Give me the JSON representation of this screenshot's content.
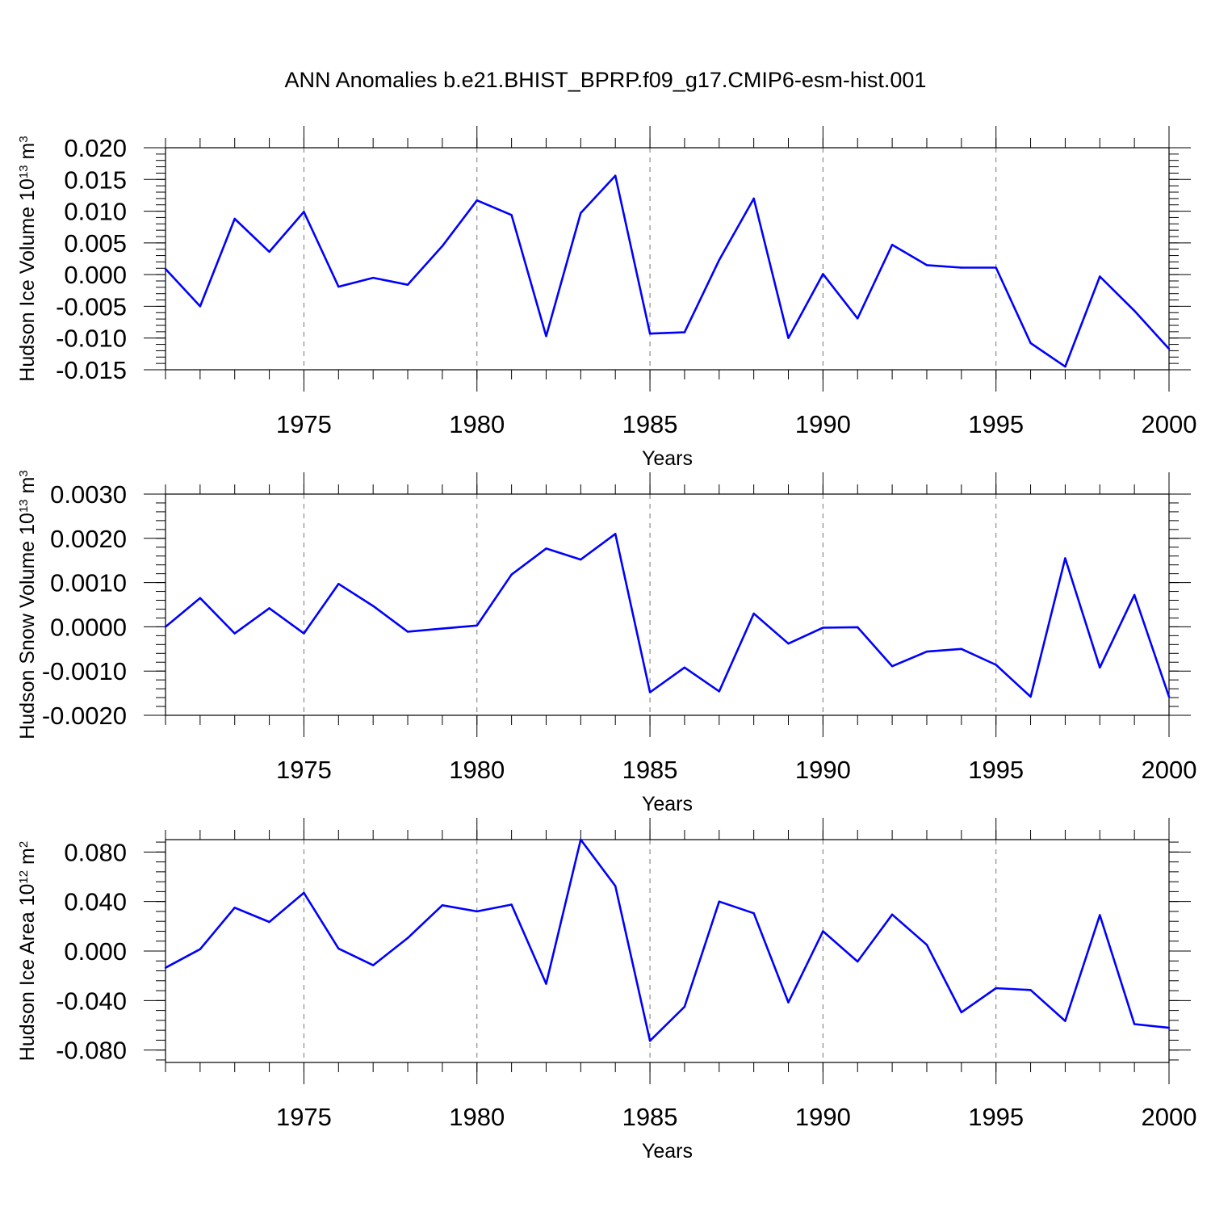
{
  "title": "ANN Anomalies b.e21.BHIST_BPRP.f09_g17.CMIP6-esm-hist.001",
  "series_color": "#0000ff",
  "chart_data": [
    {
      "type": "line",
      "ylabel_text": "Hudson Ice Volume 10",
      "ylabel_exp": "13",
      "ylabel_unit": " m",
      "ylabel_unit_exp": "3",
      "xlabel": "Years",
      "xlim": [
        1971,
        2000
      ],
      "ylim": [
        -0.015,
        0.02
      ],
      "yticks": [
        -0.015,
        -0.01,
        -0.005,
        0.0,
        0.005,
        0.01,
        0.015,
        0.02
      ],
      "yticklabels": [
        "-0.015",
        "-0.010",
        "-0.005",
        "0.000",
        "0.005",
        "0.010",
        "0.015",
        "0.020"
      ],
      "xticks": [
        1975,
        1980,
        1985,
        1990,
        1995,
        2000
      ],
      "xticklabels": [
        "1975",
        "1980",
        "1985",
        "1990",
        "1995",
        "2000"
      ],
      "grid": "vertical dashed at major x ticks",
      "x": [
        1971,
        1972,
        1973,
        1974,
        1975,
        1976,
        1977,
        1978,
        1979,
        1980,
        1981,
        1982,
        1983,
        1984,
        1985,
        1986,
        1987,
        1988,
        1989,
        1990,
        1991,
        1992,
        1993,
        1994,
        1995,
        1996,
        1997,
        1998,
        1999,
        2000
      ],
      "values": [
        0.0009,
        -0.005,
        0.0088,
        0.0036,
        0.0099,
        -0.0019,
        -0.0005,
        -0.0016,
        0.0045,
        0.0117,
        0.0094,
        -0.0097,
        0.0097,
        0.0156,
        -0.0093,
        -0.0091,
        0.0023,
        0.012,
        -0.01,
        0.0001,
        -0.0069,
        0.0047,
        0.0015,
        0.0011,
        0.0011,
        -0.0108,
        -0.0145,
        -0.0003,
        -0.0057,
        -0.0117
      ]
    },
    {
      "type": "line",
      "ylabel_text": "Hudson Snow Volume 10",
      "ylabel_exp": "13",
      "ylabel_unit": " m",
      "ylabel_unit_exp": "3",
      "xlabel": "Years",
      "xlim": [
        1971,
        2000
      ],
      "ylim": [
        -0.002,
        0.003
      ],
      "yticks": [
        -0.002,
        -0.001,
        0.0,
        0.001,
        0.002,
        0.003
      ],
      "yticklabels": [
        "-0.0020",
        "-0.0010",
        "0.0000",
        "0.0010",
        "0.0020",
        "0.0030"
      ],
      "xticks": [
        1975,
        1980,
        1985,
        1990,
        1995,
        2000
      ],
      "xticklabels": [
        "1975",
        "1980",
        "1985",
        "1990",
        "1995",
        "2000"
      ],
      "grid": "vertical dashed at major x ticks",
      "x": [
        1971,
        1972,
        1973,
        1974,
        1975,
        1976,
        1977,
        1978,
        1979,
        1980,
        1981,
        1982,
        1983,
        1984,
        1985,
        1986,
        1987,
        1988,
        1989,
        1990,
        1991,
        1992,
        1993,
        1994,
        1995,
        1996,
        1997,
        1998,
        1999,
        2000
      ],
      "values": [
        0.0,
        0.00065,
        -0.00015,
        0.00042,
        -0.00015,
        0.00097,
        0.00047,
        -0.00011,
        -4e-05,
        3e-05,
        0.00118,
        0.00177,
        0.00152,
        0.0021,
        -0.00148,
        -0.00092,
        -0.00146,
        0.0003,
        -0.00038,
        -2e-05,
        -1e-05,
        -0.00089,
        -0.00056,
        -0.0005,
        -0.00086,
        -0.00158,
        0.00155,
        -0.00092,
        0.00072,
        -0.00158
      ]
    },
    {
      "type": "line",
      "ylabel_text": "Hudson Ice Area 10",
      "ylabel_exp": "12",
      "ylabel_unit": " m",
      "ylabel_unit_exp": "2",
      "xlabel": "Years",
      "xlim": [
        1971,
        2000
      ],
      "ylim": [
        -0.09,
        0.09
      ],
      "yticks": [
        -0.08,
        -0.04,
        0.0,
        0.04,
        0.08
      ],
      "yticklabels": [
        "-0.080",
        "-0.040",
        "0.000",
        "0.040",
        "0.080"
      ],
      "xticks": [
        1975,
        1980,
        1985,
        1990,
        1995,
        2000
      ],
      "xticklabels": [
        "1975",
        "1980",
        "1985",
        "1990",
        "1995",
        "2000"
      ],
      "grid": "vertical dashed at major x ticks",
      "x": [
        1971,
        1972,
        1973,
        1974,
        1975,
        1976,
        1977,
        1978,
        1979,
        1980,
        1981,
        1982,
        1983,
        1984,
        1985,
        1986,
        1987,
        1988,
        1989,
        1990,
        1991,
        1992,
        1993,
        1994,
        1995,
        1996,
        1997,
        1998,
        1999,
        2000
      ],
      "values": [
        -0.0135,
        0.0015,
        0.035,
        0.0235,
        0.047,
        0.002,
        -0.0115,
        0.0105,
        0.037,
        0.032,
        0.0375,
        -0.0265,
        0.09,
        0.0525,
        -0.0725,
        -0.045,
        0.04,
        0.0305,
        -0.0415,
        0.016,
        -0.0085,
        0.0295,
        0.005,
        -0.0495,
        -0.03,
        -0.0315,
        -0.0565,
        0.029,
        -0.059,
        -0.062
      ]
    }
  ]
}
